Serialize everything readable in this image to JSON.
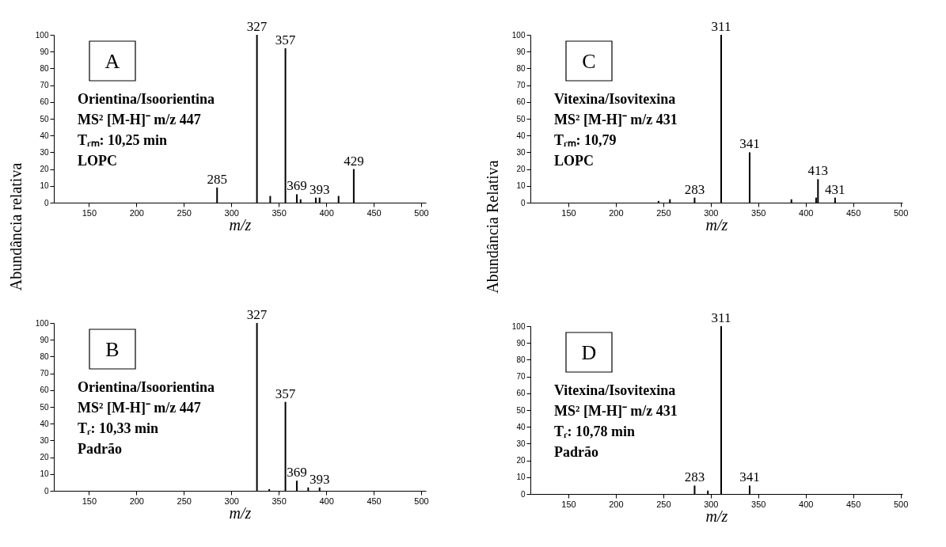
{
  "chart_data": [
    {
      "type": "bar",
      "x": [
        285,
        327,
        341,
        357,
        369,
        373,
        389,
        393,
        413,
        429
      ],
      "values": [
        9,
        100,
        4,
        92,
        5,
        2,
        3,
        3,
        4,
        20
      ],
      "color": "#000000",
      "xlabel": "m/z",
      "ylabel": "Abundância relativa",
      "xlim": [
        113,
        505
      ],
      "xticks": [
        150,
        200,
        250,
        300,
        350,
        400,
        450,
        500
      ],
      "ylim": [
        0,
        100
      ],
      "yticks": [
        0,
        10,
        20,
        30,
        40,
        50,
        60,
        70,
        80,
        90,
        100
      ],
      "annotations": [
        "A",
        "Orientina/Isoorientina",
        "MS² [M-H]⁻ m/z 447",
        "Tᵣₘ:  10,25 min",
        "LOPC",
        {
          "text": "285",
          "x": 285,
          "y": 9
        },
        {
          "text": "327",
          "x": 327,
          "y": 100
        },
        {
          "text": "357",
          "x": 357,
          "y": 92
        },
        {
          "text": "369",
          "x": 369,
          "y": 5
        },
        {
          "text": "393",
          "x": 393,
          "y": 3
        },
        {
          "text": "429",
          "x": 429,
          "y": 20
        }
      ]
    },
    {
      "type": "bar",
      "x": [
        327,
        340,
        357,
        369,
        381,
        393
      ],
      "values": [
        100,
        1,
        53,
        6,
        2,
        2
      ],
      "color": "#000000",
      "xlabel": "m/z",
      "xlim": [
        113,
        505
      ],
      "xticks": [
        150,
        200,
        250,
        300,
        350,
        400,
        450,
        500
      ],
      "ylim": [
        0,
        100
      ],
      "yticks": [
        0,
        10,
        20,
        30,
        40,
        50,
        60,
        70,
        80,
        90,
        100
      ],
      "annotations": [
        "B",
        "Orientina/Isoorientina",
        "MS² [M-H]⁻ m/z 447",
        "Tᵣ: 10,33 min",
        "Padrão",
        {
          "text": "327",
          "x": 327,
          "y": 100
        },
        {
          "text": "357",
          "x": 357,
          "y": 53
        },
        {
          "text": "369",
          "x": 369,
          "y": 6
        },
        {
          "text": "393",
          "x": 393,
          "y": 2
        }
      ]
    },
    {
      "type": "bar",
      "x": [
        245,
        257,
        283,
        311,
        341,
        385,
        411,
        413,
        431
      ],
      "values": [
        1,
        2,
        3,
        100,
        30,
        2,
        3,
        14,
        3
      ],
      "color": "#000000",
      "xlabel": "m/z",
      "ylabel": "Abundância Relativa",
      "xlim": [
        110,
        502
      ],
      "xticks": [
        150,
        200,
        250,
        300,
        350,
        400,
        450,
        500
      ],
      "ylim": [
        0,
        100
      ],
      "yticks": [
        0,
        10,
        20,
        30,
        40,
        50,
        60,
        70,
        80,
        90,
        100
      ],
      "annotations": [
        "C",
        "Vitexina/Isovitexina",
        "MS² [M-H]⁻ m/z 431",
        "Tᵣₘ: 10,79",
        "LOPC",
        {
          "text": "283",
          "x": 283,
          "y": 3
        },
        {
          "text": "311",
          "x": 311,
          "y": 100
        },
        {
          "text": "341",
          "x": 341,
          "y": 30
        },
        {
          "text": "413",
          "x": 413,
          "y": 14
        },
        {
          "text": "431",
          "x": 431,
          "y": 3
        }
      ]
    },
    {
      "type": "bar",
      "x": [
        283,
        297,
        311,
        341
      ],
      "values": [
        5,
        2,
        100,
        5
      ],
      "color": "#000000",
      "xlabel": "m/z",
      "xlim": [
        110,
        502
      ],
      "xticks": [
        150,
        200,
        250,
        300,
        350,
        400,
        450,
        500
      ],
      "ylim": [
        0,
        100
      ],
      "yticks": [
        0,
        10,
        20,
        30,
        40,
        50,
        60,
        70,
        80,
        90,
        100
      ],
      "annotations": [
        "D",
        "Vitexina/Isovitexina",
        "MS² [M-H]⁻ m/z 431",
        "Tᵣ: 10,78 min",
        "Padrão",
        {
          "text": "283",
          "x": 283,
          "y": 5
        },
        {
          "text": "311",
          "x": 311,
          "y": 100
        },
        {
          "text": "341",
          "x": 341,
          "y": 5
        }
      ]
    }
  ]
}
